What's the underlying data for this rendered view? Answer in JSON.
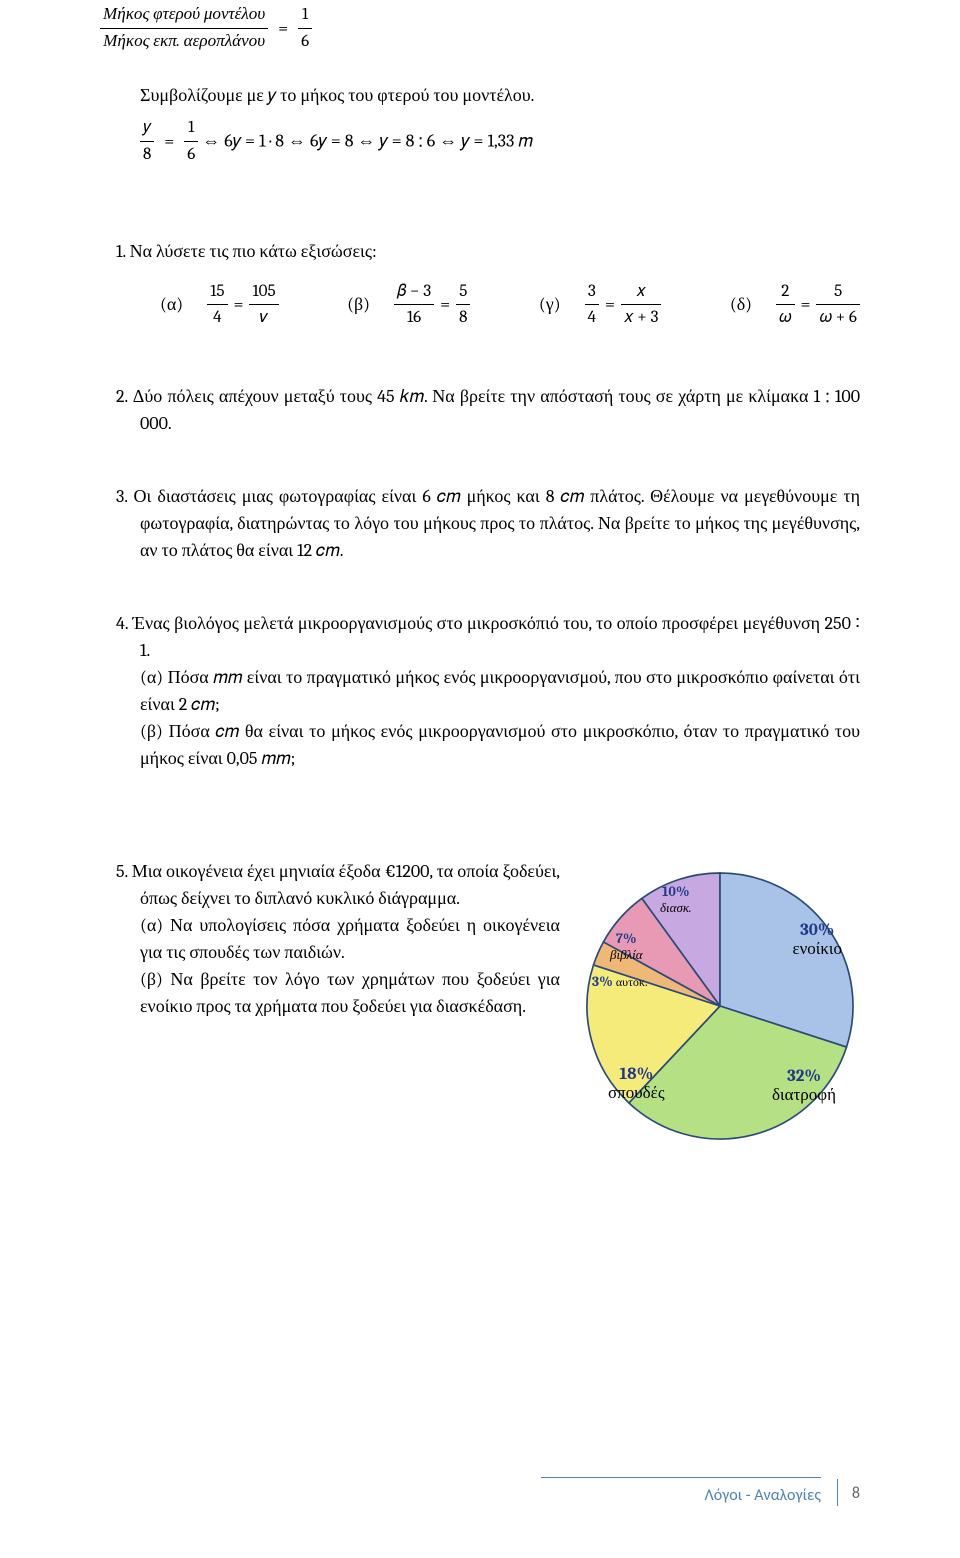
{
  "intro_ratio": {
    "num": "Μήκος φτερού μοντέλου",
    "den": "Μήκος εκπ. αεροπλάνου",
    "rhs_num": "1",
    "rhs_den": "6"
  },
  "intro_line": "Συμβολίζουμε με 𝑦 το μήκος του φτερού του μοντέλου.",
  "solved": {
    "lhs_num": "𝑦",
    "lhs_den": "8",
    "rhs_num": "1",
    "rhs_den": "6",
    "s1": " ⇔ 6𝑦 = 1 · 8   ⇔  6𝑦 = 8   ⇔   𝑦 = 8 ∶ 6   ⇔   𝑦 = 1,33 𝑚"
  },
  "q1": {
    "prompt": "1.   Να λύσετε τις πιο κάτω εξισώσεις:",
    "a": {
      "lbl": "(α)",
      "ln": "15",
      "ld": "4",
      "rn": "105",
      "rd": "𝜈"
    },
    "b": {
      "lbl": "(β)",
      "ln": "𝛽 − 3",
      "ld": "16",
      "rn": "5",
      "rd": "8"
    },
    "c": {
      "lbl": "(γ)",
      "ln": "3",
      "ld": "4",
      "rn": "𝑥",
      "rd": "𝑥 + 3"
    },
    "d": {
      "lbl": "(δ)",
      "ln": "2",
      "ld": "𝜔",
      "rn": "5",
      "rd": "𝜔 + 6"
    }
  },
  "q2": "2.   Δύο πόλεις απέχουν μεταξύ τους 45 𝑘𝑚. Να βρείτε την απόστασή τους σε χάρτη με κλίμακα  1 ∶ 100 000.",
  "q3": "3.   Οι διαστάσεις μιας φωτογραφίας είναι 6 𝑐𝑚 μήκος και 8 𝑐𝑚 πλάτος. Θέλουμε να μεγεθύνουμε τη φωτογραφία, διατηρώντας το λόγο του μήκους προς το πλάτος. Να βρείτε το μήκος της μεγέθυνσης, αν το πλάτος θα είναι 12 𝑐𝑚.",
  "q4": {
    "p1": "4.   Ένας βιολόγος μελετά μικροοργανισμούς στο μικροσκόπιό του, το οποίο προσφέρει μεγέθυνση 250 ∶ 1.",
    "p2": "(α)  Πόσα 𝑚𝑚 είναι το πραγματικό μήκος ενός μικροοργανισμού, που στο μικροσκόπιο φαίνεται ότι είναι 2 𝑐𝑚;",
    "p3": "(β)  Πόσα 𝑐𝑚 θα είναι το μήκος ενός μικροοργανισμού στο μικροσκόπιο, όταν το πραγματικό του μήκος είναι 0,05 𝑚𝑚;"
  },
  "q5": {
    "p1": "5.   Μια οικογένεια έχει μηνιαία έξοδα €1200,  τα οποία   ξοδεύει, όπως δείχνει το διπλανό κυκλικό διάγραμμα.",
    "p2": "(α)  Να υπολογίσεις πόσα χρήματα ξοδεύει η οικογένεια για τις σπουδές των παιδιών.",
    "p3": "(β)  Να βρείτε τον λόγο των χρημάτων  που ξοδεύει για ενοίκιο προς τα χρήματα που ξοδεύει για διασκέδαση."
  },
  "pie": {
    "slices": [
      {
        "label": "ενοίκιο",
        "pct": "30%",
        "value": 30,
        "color": "#a9c3e8"
      },
      {
        "label": "διατροφή",
        "pct": "32%",
        "value": 32,
        "color": "#b5e083"
      },
      {
        "label": "σπουδές",
        "pct": "18%",
        "value": 18,
        "color": "#f5eb7a"
      },
      {
        "label": "αυτοκ.",
        "pct": "3%",
        "value": 3,
        "color": "#f0b876"
      },
      {
        "label": "βιβλία",
        "pct": "7%",
        "value": 7,
        "color": "#e89ab5"
      },
      {
        "label": "διασκ.",
        "pct": "10%",
        "value": 10,
        "color": "#c8a8e0"
      }
    ],
    "border_color": "#2a4a7a",
    "label_color_pct": "#203a8a",
    "small_label_fontsize": 14,
    "label_fontsize": 17
  },
  "footer": {
    "text": "Λόγοι - Αναλογίες",
    "page": "8",
    "accent": "#4f81bd"
  }
}
